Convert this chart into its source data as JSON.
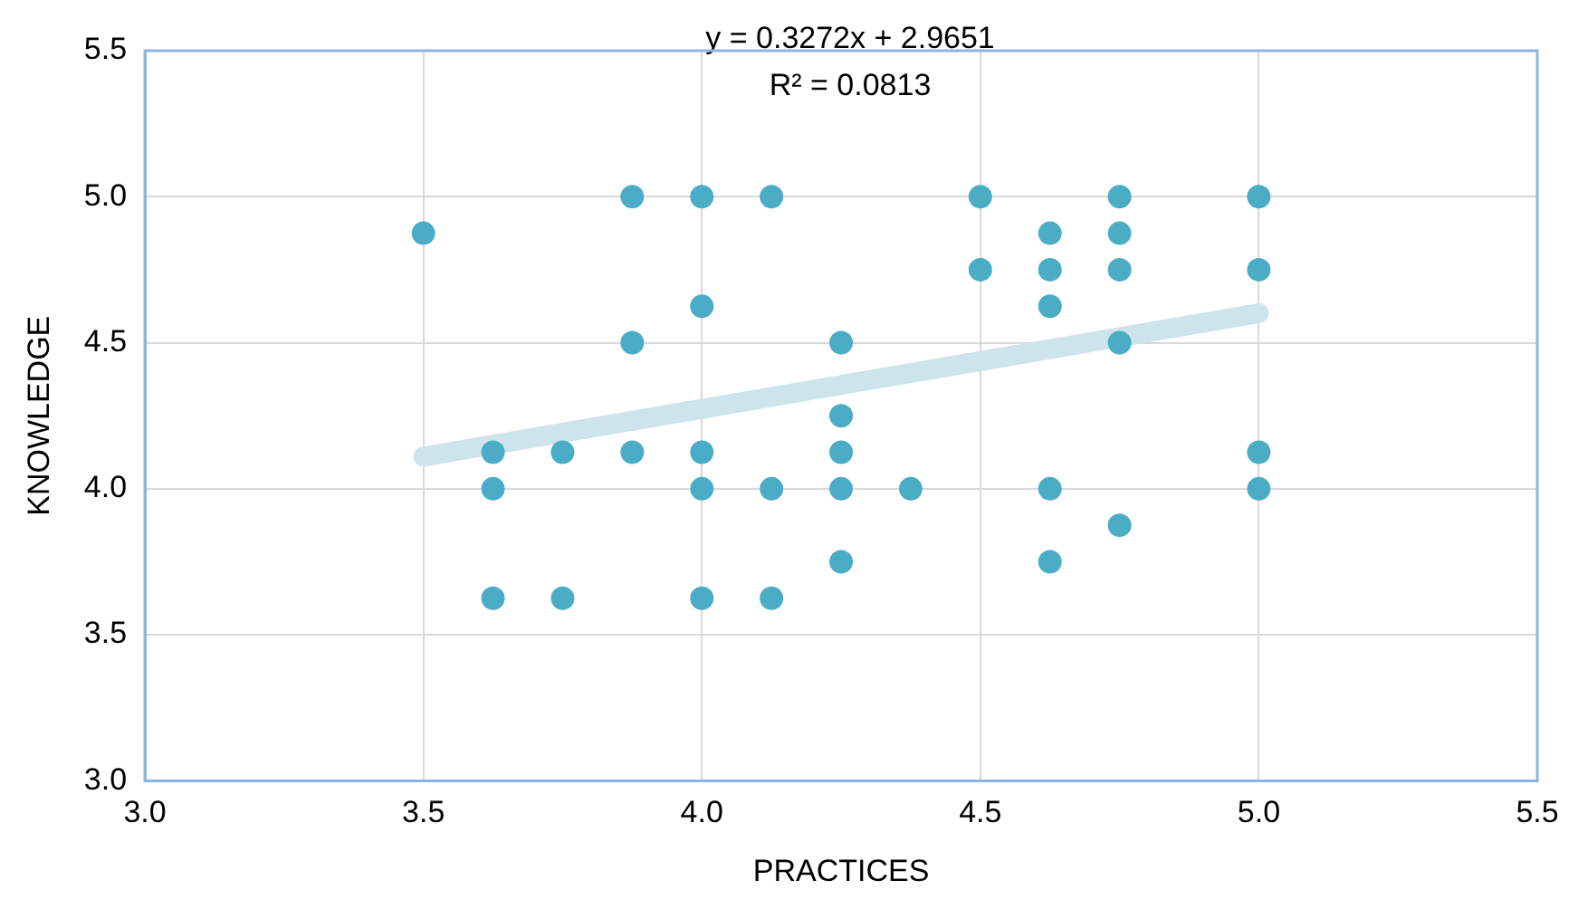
{
  "chart_data": {
    "type": "scatter",
    "xlabel": "PRACTICES",
    "ylabel": "KNOWLEDGE",
    "annotations": [
      "y = 0.3272x + 2.9651",
      "R² = 0.0813"
    ],
    "xlim": [
      3.0,
      5.5
    ],
    "xticks": [
      {
        "value": 3.0,
        "label": "3.0"
      },
      {
        "value": 3.5,
        "label": "3.5"
      },
      {
        "value": 4.0,
        "label": "4.0"
      },
      {
        "value": 4.5,
        "label": "4.5"
      },
      {
        "value": 5.0,
        "label": "5.0"
      },
      {
        "value": 5.5,
        "label": "5.5"
      }
    ],
    "ylim": [
      3.0,
      5.5
    ],
    "yticks": [
      {
        "value": 3.0,
        "label": "3.0"
      },
      {
        "value": 3.5,
        "label": "3.5"
      },
      {
        "value": 4.0,
        "label": "4.0"
      },
      {
        "value": 4.5,
        "label": "4.5"
      },
      {
        "value": 5.0,
        "label": "5.0"
      },
      {
        "value": 5.5,
        "label": "5.5"
      }
    ],
    "grid": true,
    "legend": false,
    "marker": "circle",
    "series": [
      {
        "type": "line",
        "color": "#cde4ec",
        "x": [
          3.5,
          5.0
        ],
        "values": [
          4.11,
          4.601
        ],
        "marker": "none"
      },
      {
        "type": "scatter",
        "color": "#4bacc6",
        "x": [
          3.5,
          3.625,
          3.625,
          3.625,
          3.75,
          3.75,
          3.875,
          3.875,
          3.875,
          4.0,
          4.0,
          4.0,
          4.0,
          4.0,
          4.125,
          4.125,
          4.125,
          4.25,
          4.25,
          4.25,
          4.25,
          4.25,
          4.375,
          4.5,
          4.5,
          4.625,
          4.625,
          4.625,
          4.625,
          4.625,
          4.75,
          4.75,
          4.75,
          4.75,
          4.75,
          5.0,
          5.0,
          5.0,
          5.0
        ],
        "values": [
          4.875,
          4.125,
          4.0,
          3.625,
          4.125,
          3.625,
          5.0,
          4.5,
          4.125,
          5.0,
          4.625,
          4.125,
          4.0,
          3.625,
          5.0,
          4.0,
          3.625,
          4.5,
          4.25,
          4.125,
          4.0,
          3.75,
          4.0,
          5.0,
          4.75,
          4.875,
          4.75,
          4.625,
          4.0,
          3.75,
          5.0,
          4.875,
          4.75,
          4.5,
          3.875,
          5.0,
          4.75,
          4.125,
          4.0
        ]
      }
    ]
  }
}
